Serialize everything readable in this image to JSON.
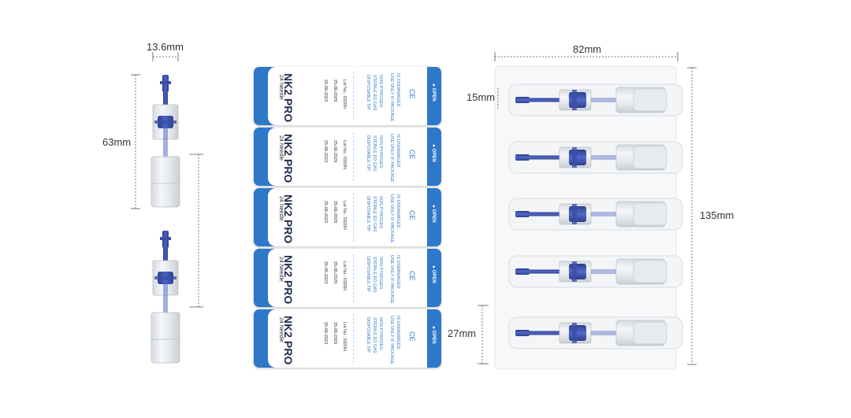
{
  "dimensions": {
    "cartridge_width": "13.6mm",
    "cartridge_length": "63mm",
    "blister_width": "82mm",
    "tip_length": "15mm",
    "blister_height": "135mm",
    "single_blister_height": "27mm"
  },
  "label": {
    "brand": "NK2 PRO",
    "needle": "24 Needle",
    "date_manufactured": "25-06-2023",
    "date_expiry": "25-06-2029",
    "lot": "Lot No.: 0320N",
    "sterile_line1": "DISPOSABLE TIP",
    "sterile_line2": "STERILE EO GAS",
    "sterile_line3": "NON PYROGEN",
    "warning_line1": "USE ONLY IF PACKAGE",
    "warning_line2": "IS UNDAMAGED",
    "ce_mark": "CE",
    "open": "▸ OPEN"
  },
  "colors": {
    "needle_blue": "#3b4fa8",
    "label_blue": "#2e78c9",
    "plastic": "#e6eaee"
  }
}
